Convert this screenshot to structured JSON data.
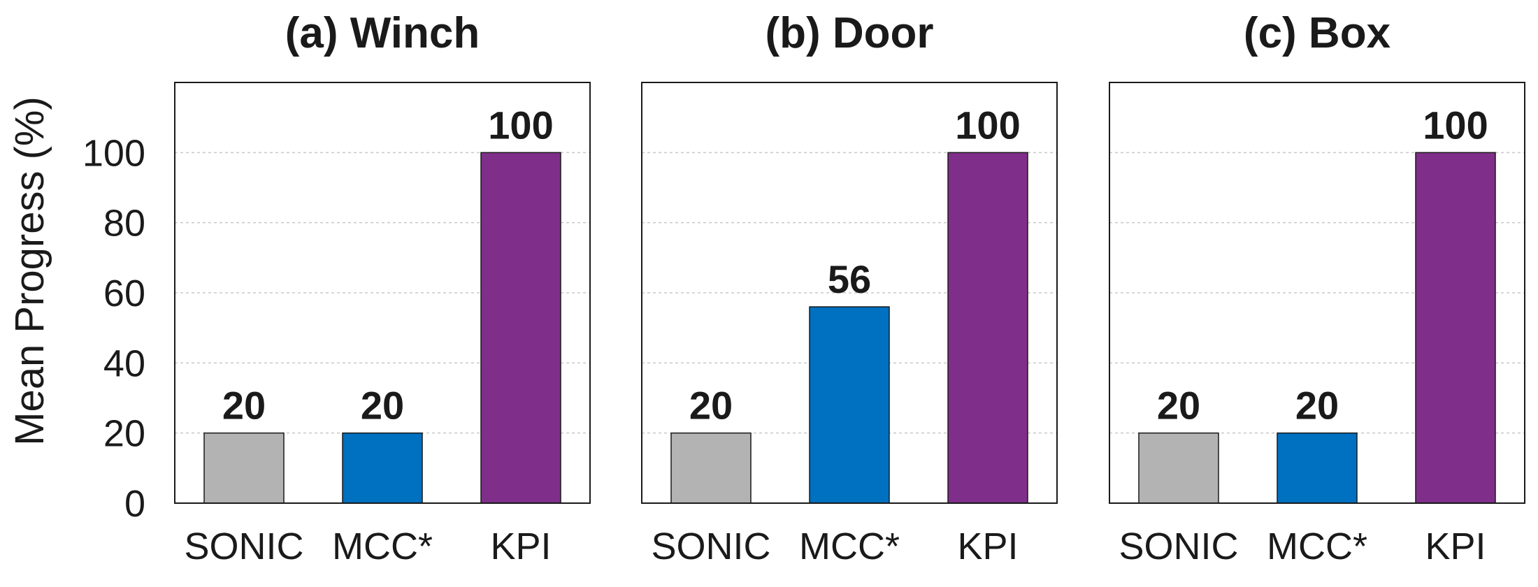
{
  "chart_data": {
    "type": "bar",
    "ylabel": "Mean Progress (%)",
    "ylim": [
      0,
      120
    ],
    "yticks": [
      0,
      20,
      40,
      60,
      80,
      100
    ],
    "grid": true,
    "colors": {
      "SONIC": "#b3b3b3",
      "MCC*": "#0070c0",
      "KPI": "#7f2f8a"
    },
    "panels": [
      {
        "title": "(a) Winch",
        "categories": [
          "SONIC",
          "MCC*",
          "KPI"
        ],
        "values": [
          20,
          20,
          100
        ]
      },
      {
        "title": "(b) Door",
        "categories": [
          "SONIC",
          "MCC*",
          "KPI"
        ],
        "values": [
          20,
          56,
          100
        ]
      },
      {
        "title": "(c) Box",
        "categories": [
          "SONIC",
          "MCC*",
          "KPI"
        ],
        "values": [
          20,
          20,
          100
        ]
      }
    ]
  }
}
